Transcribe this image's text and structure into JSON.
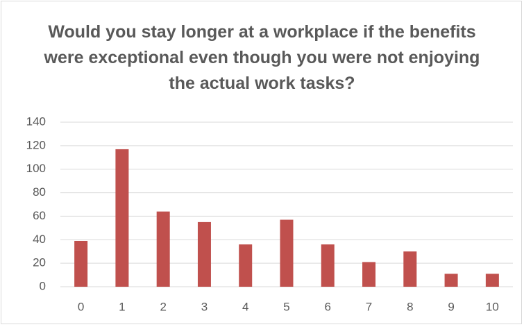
{
  "chart_data": {
    "type": "bar",
    "title": "Would you stay longer at a workplace if the benefits were exceptional even though you were not enjoying the actual work tasks?",
    "categories": [
      "0",
      "1",
      "2",
      "3",
      "4",
      "5",
      "6",
      "7",
      "8",
      "9",
      "10"
    ],
    "values": [
      39,
      117,
      64,
      55,
      36,
      57,
      36,
      21,
      30,
      11,
      11
    ],
    "color": "#c0504d",
    "ylim": [
      0,
      140
    ],
    "yticks": [
      0,
      20,
      40,
      60,
      80,
      100,
      120,
      140
    ],
    "grid": true
  }
}
